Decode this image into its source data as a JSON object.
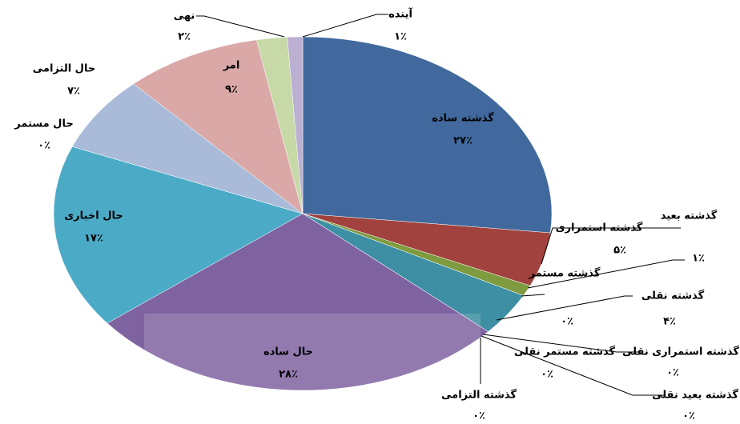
{
  "chart_data": {
    "type": "pie",
    "categories": [
      "گذشته ساده",
      "گذشته استمراری",
      "گذشته بعید",
      "گذشته مستمر",
      "گذشته نقلی",
      "گذشته استمراری نقلی",
      "گذشته بعید نقلی",
      "گذشته التزامی",
      "گذشته مستمر نقلی",
      "حال ساده",
      "حال اخباری",
      "حال مستمر",
      "حال التزامی",
      "امر",
      "نهی",
      "آینده"
    ],
    "values": [
      27,
      5,
      1,
      0,
      4,
      0,
      0,
      0,
      0,
      28,
      17,
      0,
      7,
      9,
      2,
      1
    ],
    "value_labels": [
      "۲۷٪",
      "۵٪",
      "۱٪",
      "۰٪",
      "۴٪",
      "۰٪",
      "۰٪",
      "۰٪",
      "۰٪",
      "۲۸٪",
      "۱۷٪",
      "۰٪",
      "۷٪",
      "۹٪",
      "۲٪",
      "۱٪"
    ],
    "colors": [
      "#41699e",
      "#a1423e",
      "#7f9b3f",
      "#6a528a",
      "#3e8fa3",
      "#d9883a",
      "#8aa6cf",
      "#c27a7a",
      "#b4c98a",
      "#7f63a1",
      "#4babc7",
      "#f2a15f",
      "#aabbd9",
      "#d9a8a7",
      "#c6d9a6",
      "#bbb0d2"
    ]
  }
}
